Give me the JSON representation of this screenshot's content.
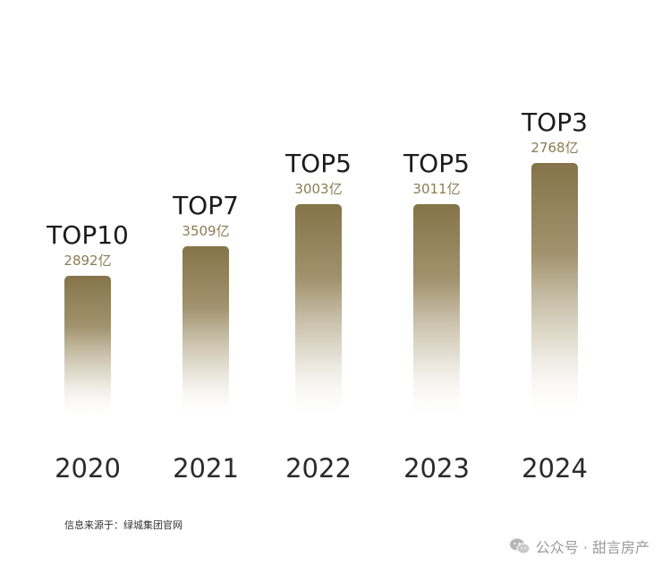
{
  "chart_data": {
    "type": "bar",
    "categories": [
      "2020",
      "2021",
      "2022",
      "2023",
      "2024"
    ],
    "values": [
      2892,
      3509,
      3003,
      3011,
      2768
    ],
    "value_labels": [
      "2892亿",
      "3509亿",
      "3003亿",
      "3011亿",
      "2768亿"
    ],
    "rank_labels": [
      "TOP10",
      "TOP7",
      "TOP5",
      "TOP5",
      "TOP3"
    ],
    "rank_order": [
      10,
      7,
      5,
      5,
      3
    ],
    "title": "",
    "xlabel": "",
    "ylabel": "",
    "grid": false,
    "colors": {
      "bar_top": "#857449",
      "bar_bottom": "#ffffff",
      "value_label": "#8a7d52",
      "rank_label": "#1c1c1c",
      "year_label": "#2a2a2a"
    }
  },
  "footer": {
    "source_text": "信息来源于：绿城集团官网"
  },
  "watermark": {
    "icon": "wechat-icon",
    "text": "公众号 · 甜言房产"
  }
}
